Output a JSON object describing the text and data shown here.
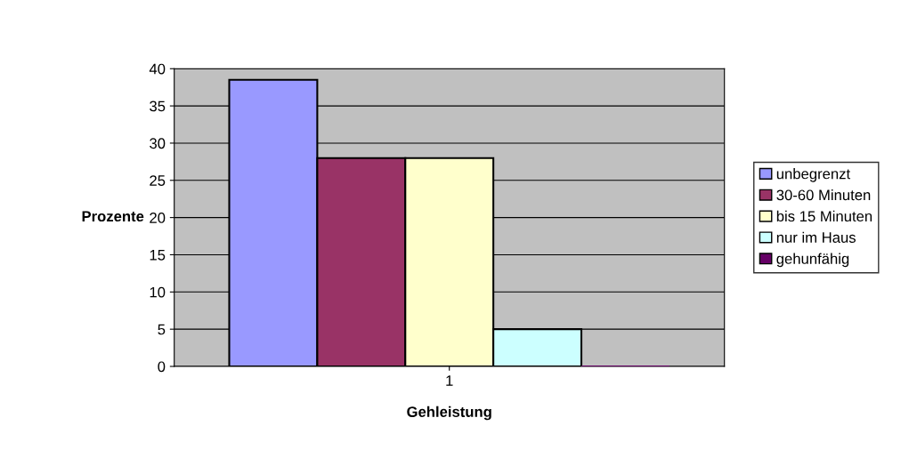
{
  "chart_data": {
    "type": "bar",
    "xlabel": "Gehleistung",
    "ylabel": "Prozente",
    "categories": [
      "1"
    ],
    "series": [
      {
        "name": "unbegrenzt",
        "color": "#9999ff",
        "values": [
          38.5
        ]
      },
      {
        "name": "30-60 Minuten",
        "color": "#993366",
        "values": [
          28
        ]
      },
      {
        "name": "bis 15 Minuten",
        "color": "#ffffcc",
        "values": [
          28
        ]
      },
      {
        "name": "nur im Haus",
        "color": "#ccffff",
        "values": [
          5
        ]
      },
      {
        "name": "gehunfähig",
        "color": "#660066",
        "values": [
          0
        ]
      }
    ],
    "ylim": [
      0,
      40
    ],
    "yticks": [
      0,
      5,
      10,
      15,
      20,
      25,
      30,
      35,
      40
    ],
    "grid": "y",
    "legend": "right"
  }
}
